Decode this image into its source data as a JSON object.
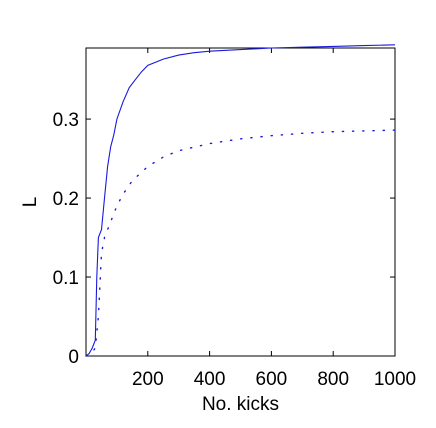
{
  "chart_data": {
    "type": "line",
    "title": "",
    "xlabel": "No. kicks",
    "ylabel": "L",
    "xlim": [
      0,
      1000
    ],
    "ylim": [
      0,
      0.39
    ],
    "xticks": [
      200,
      400,
      600,
      800,
      1000
    ],
    "xtick_labels": [
      "200",
      "400",
      "600",
      "800",
      "1000"
    ],
    "yticks": [
      0,
      0.1,
      0.2,
      0.3
    ],
    "ytick_labels": [
      "0",
      "0.1",
      "0.2",
      "0.3"
    ],
    "grid": false,
    "legend": "none",
    "colors": {
      "series": "#1a1adb",
      "axes": "#000000"
    },
    "series": [
      {
        "style": "solid",
        "x": [
          0,
          10,
          20,
          30,
          35,
          40,
          50,
          60,
          70,
          80,
          90,
          100,
          120,
          140,
          160,
          180,
          200,
          250,
          300,
          350,
          400,
          500,
          600,
          700,
          800,
          900,
          1000
        ],
        "y": [
          0,
          0.003,
          0.01,
          0.02,
          0.1,
          0.15,
          0.16,
          0.2,
          0.24,
          0.265,
          0.28,
          0.3,
          0.322,
          0.34,
          0.35,
          0.36,
          0.368,
          0.376,
          0.381,
          0.384,
          0.386,
          0.388,
          0.39,
          0.391,
          0.392,
          0.393,
          0.394
        ]
      },
      {
        "style": "dotted",
        "x": [
          0,
          20,
          30,
          40,
          50,
          60,
          80,
          100,
          120,
          150,
          200,
          250,
          300,
          400,
          500,
          600,
          700,
          800,
          900,
          1000
        ],
        "y": [
          0,
          0.005,
          0.01,
          0.05,
          0.13,
          0.15,
          0.17,
          0.19,
          0.205,
          0.222,
          0.24,
          0.252,
          0.26,
          0.269,
          0.275,
          0.279,
          0.282,
          0.284,
          0.285,
          0.286
        ]
      }
    ]
  }
}
